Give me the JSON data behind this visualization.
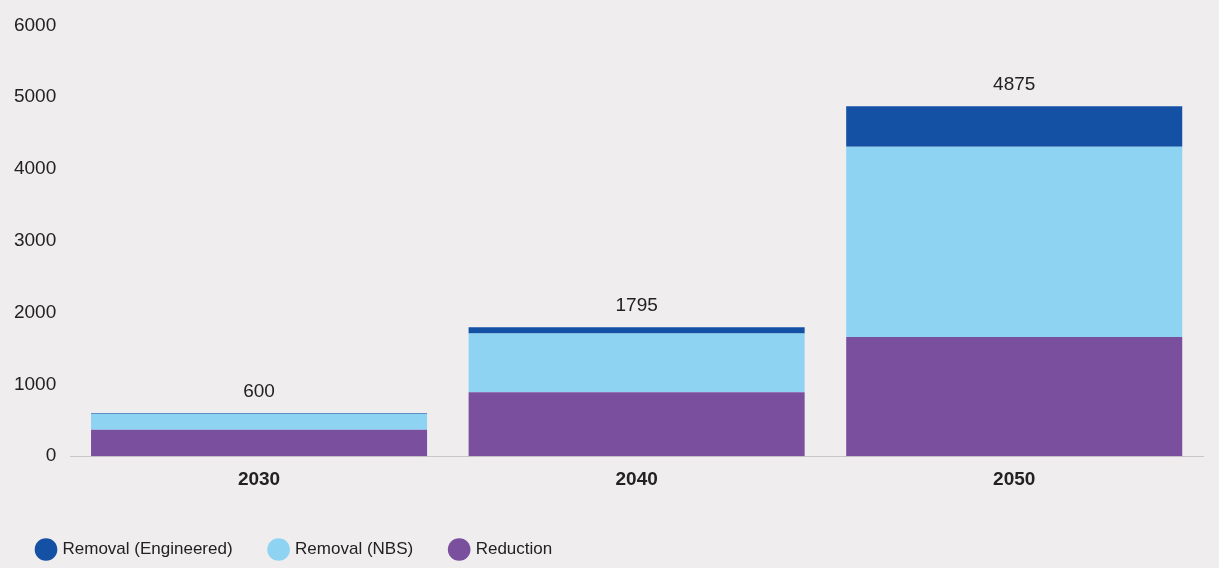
{
  "chart_data": {
    "type": "bar",
    "stacked": true,
    "categories": [
      "2030",
      "2040",
      "2050"
    ],
    "series": [
      {
        "name": "Reduction",
        "color": "#7a4f9e",
        "values": [
          370,
          890,
          1660
        ]
      },
      {
        "name": "Removal (NBS)",
        "color": "#8fd3f3",
        "values": [
          220,
          820,
          2650
        ]
      },
      {
        "name": "Removal (Engineered)",
        "color": "#1450a3",
        "values": [
          10,
          85,
          565
        ]
      }
    ],
    "totals": [
      "600",
      "1795",
      "4875"
    ],
    "ylim": [
      0,
      6000
    ],
    "yticks": [
      0,
      1000,
      2000,
      3000,
      4000,
      5000,
      6000
    ],
    "grid": false,
    "legend": "bottom left",
    "marker": "circle"
  }
}
